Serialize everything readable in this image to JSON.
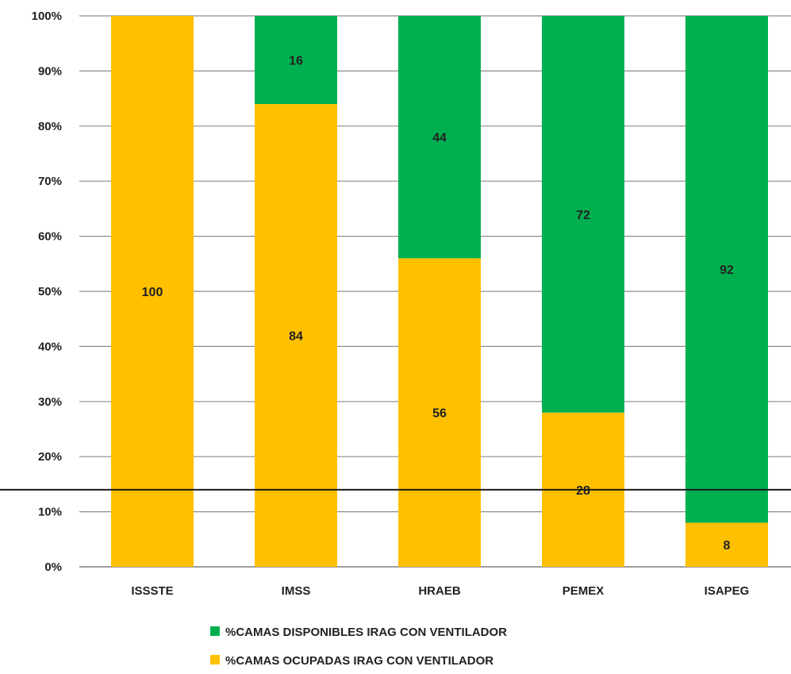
{
  "chart_data": {
    "type": "bar",
    "stacked": true,
    "categories": [
      "ISSSTE",
      "IMSS",
      "HRAEB",
      "PEMEX",
      "ISAPEG"
    ],
    "series": [
      {
        "name": "%CAMAS OCUPADAS IRAG CON VENTILADOR",
        "color": "#FFC000",
        "values": [
          100,
          84,
          56,
          28,
          8
        ]
      },
      {
        "name": "%CAMAS DISPONIBLES IRAG  CON VENTILADOR",
        "color": "#00B050",
        "values": [
          0,
          16,
          44,
          72,
          92
        ]
      }
    ],
    "y_ticks": [
      "0%",
      "10%",
      "20%",
      "30%",
      "40%",
      "50%",
      "60%",
      "70%",
      "80%",
      "90%",
      "100%"
    ],
    "ylim": [
      0,
      100
    ],
    "grid": true,
    "reference_line": 14,
    "legend": {
      "position": "bottom",
      "items": [
        {
          "label": "%CAMAS DISPONIBLES IRAG  CON VENTILADOR",
          "color": "#00B050"
        },
        {
          "label": "%CAMAS OCUPADAS IRAG CON VENTILADOR",
          "color": "#FFC000"
        }
      ]
    }
  }
}
